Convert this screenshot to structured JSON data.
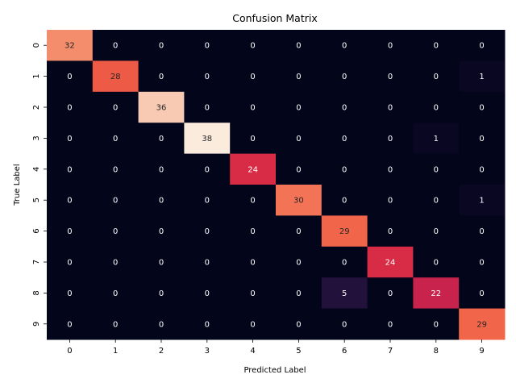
{
  "chart_data": {
    "type": "heatmap",
    "title": "Confusion Matrix",
    "xlabel": "Predicted Label",
    "ylabel": "True Label",
    "x_categories": [
      "0",
      "1",
      "2",
      "3",
      "4",
      "5",
      "6",
      "7",
      "8",
      "9"
    ],
    "y_categories": [
      "0",
      "1",
      "2",
      "3",
      "4",
      "5",
      "6",
      "7",
      "8",
      "9"
    ],
    "values": [
      [
        32,
        0,
        0,
        0,
        0,
        0,
        0,
        0,
        0,
        0
      ],
      [
        0,
        28,
        0,
        0,
        0,
        0,
        0,
        0,
        0,
        1
      ],
      [
        0,
        0,
        36,
        0,
        0,
        0,
        0,
        0,
        0,
        0
      ],
      [
        0,
        0,
        0,
        38,
        0,
        0,
        0,
        0,
        1,
        0
      ],
      [
        0,
        0,
        0,
        0,
        24,
        0,
        0,
        0,
        0,
        0
      ],
      [
        0,
        0,
        0,
        0,
        0,
        30,
        0,
        0,
        0,
        1
      ],
      [
        0,
        0,
        0,
        0,
        0,
        0,
        29,
        0,
        0,
        0
      ],
      [
        0,
        0,
        0,
        0,
        0,
        0,
        0,
        24,
        0,
        0
      ],
      [
        0,
        0,
        0,
        0,
        0,
        0,
        5,
        0,
        22,
        0
      ],
      [
        0,
        0,
        0,
        0,
        0,
        0,
        0,
        0,
        0,
        29
      ]
    ],
    "value_range": [
      0,
      38
    ],
    "colormap": "rocket",
    "colorbar": false,
    "grid": false
  }
}
